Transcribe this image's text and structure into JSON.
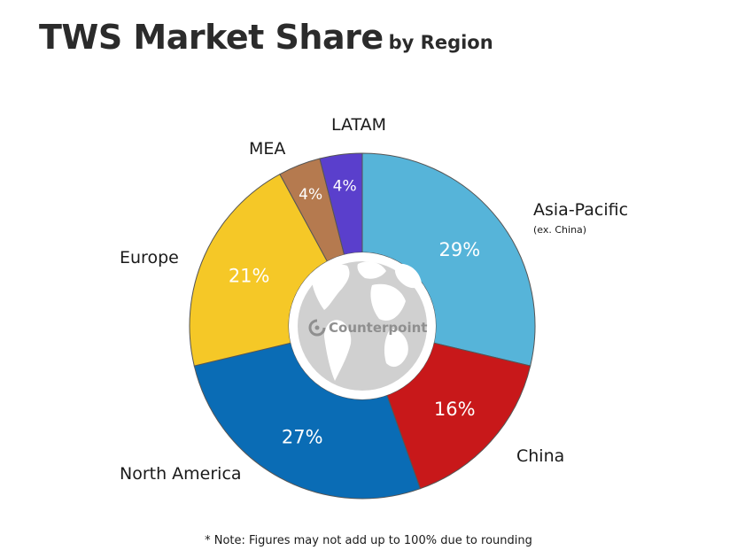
{
  "chart_data": {
    "type": "pie",
    "title": "TWS Market Share",
    "subtitle": "by Region",
    "note": "* Note: Figures may not add up to 100% due to rounding",
    "slices": [
      {
        "label": "Asia-Pacific",
        "sublabel": "(ex. China)",
        "value": 29,
        "display": "29%",
        "color": "#56b4d9"
      },
      {
        "label": "China",
        "sublabel": "",
        "value": 16,
        "display": "16%",
        "color": "#c8181a"
      },
      {
        "label": "North America",
        "sublabel": "",
        "value": 27,
        "display": "27%",
        "color": "#0a6cb5"
      },
      {
        "label": "Europe",
        "sublabel": "",
        "value": 21,
        "display": "21%",
        "color": "#f5c827"
      },
      {
        "label": "MEA",
        "sublabel": "",
        "value": 4,
        "display": "4%",
        "color": "#b57a4f"
      },
      {
        "label": "LATAM",
        "sublabel": "",
        "value": 4,
        "display": "4%",
        "color": "#5a3fcc"
      }
    ]
  },
  "logo": {
    "text": "Counterpoint"
  }
}
